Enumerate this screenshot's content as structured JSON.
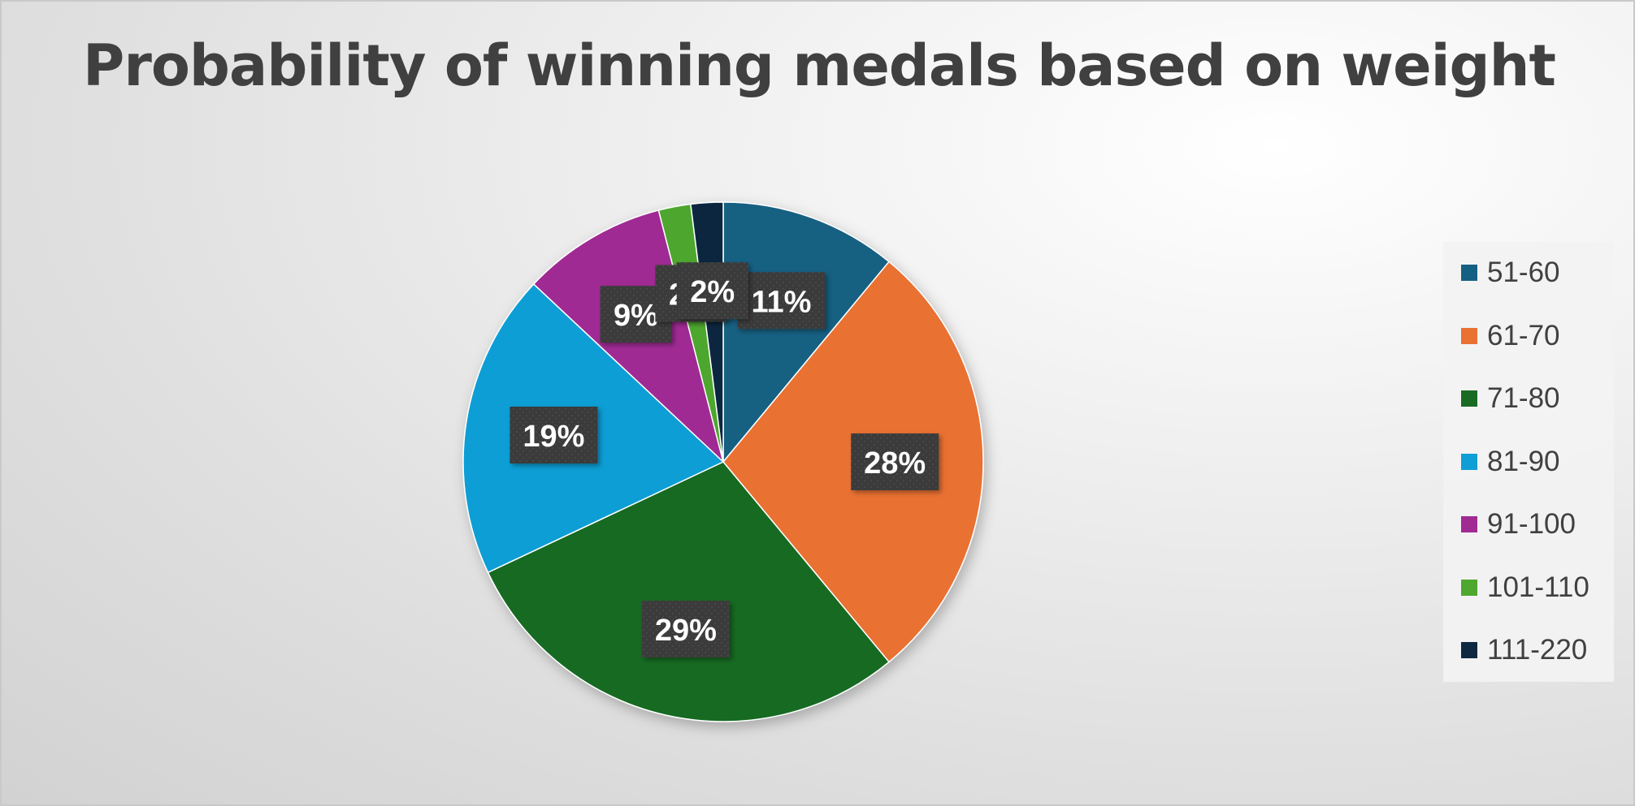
{
  "chart_data": {
    "type": "pie",
    "title": "Probability of winning medals based on weight",
    "legend_position": "right",
    "categories": [
      "51-60",
      "61-70",
      "71-80",
      "81-90",
      "91-100",
      "101-110",
      "111-220"
    ],
    "values": [
      11,
      28,
      29,
      19,
      9,
      2,
      2
    ],
    "labels": [
      "11%",
      "28%",
      "29%",
      "19%",
      "9%",
      "2%",
      "2%"
    ],
    "colors": [
      "#156082",
      "#E97132",
      "#196B24",
      "#0F9ED5",
      "#A02B93",
      "#4EA72E",
      "#0E2841"
    ],
    "label_style": {
      "background": "#3a3a3a",
      "text_color": "#ffffff"
    }
  }
}
